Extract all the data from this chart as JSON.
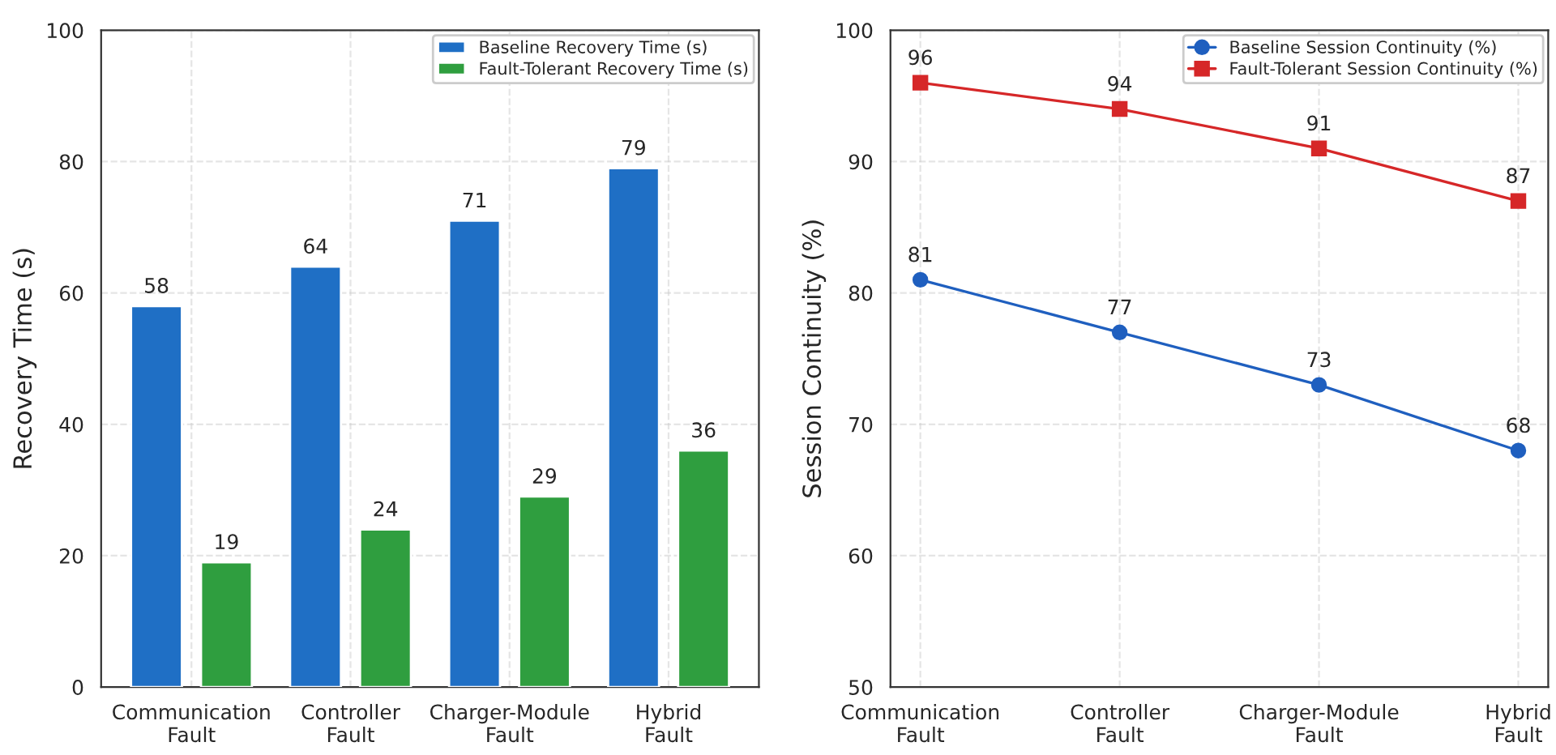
{
  "chart_data": [
    {
      "type": "bar",
      "ylabel": "Recovery Time (s)",
      "categories": [
        "Communication\nFault",
        "Controller\nFault",
        "Charger-Module\nFault",
        "Hybrid\nFault"
      ],
      "series": [
        {
          "name": "Baseline Recovery Time (s)",
          "color": "#1f6fc5",
          "values": [
            58,
            64,
            71,
            79
          ]
        },
        {
          "name": "Fault-Tolerant Recovery Time (s)",
          "color": "#2f9e3f",
          "values": [
            19,
            24,
            29,
            36
          ]
        }
      ],
      "ylim": [
        0,
        100
      ],
      "yticks": [
        0,
        20,
        40,
        60,
        80,
        100
      ],
      "grid": true,
      "legend": "top right",
      "data_labels": true
    },
    {
      "type": "line",
      "ylabel": "Session Continuity (%)",
      "categories": [
        "Communication\nFault",
        "Controller\nFault",
        "Charger-Module\nFault",
        "Hybrid\nFault"
      ],
      "series": [
        {
          "name": "Baseline Session Continuity (%)",
          "color": "#1f5fbf",
          "values": [
            81,
            77,
            73,
            68
          ],
          "marker": "circle"
        },
        {
          "name": "Fault-Tolerant Session Continuity (%)",
          "color": "#d62728",
          "values": [
            96,
            94,
            91,
            87
          ],
          "marker": "square"
        }
      ],
      "ylim": [
        50,
        100
      ],
      "yticks": [
        50,
        60,
        70,
        80,
        90,
        100
      ],
      "grid": true,
      "legend": "top right",
      "data_labels": true
    }
  ]
}
